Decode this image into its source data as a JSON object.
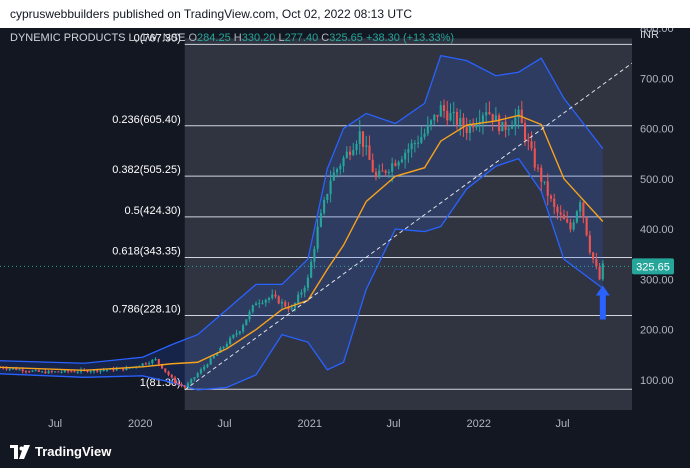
{
  "header": {
    "published_text": "cypruswebbuilders published on TradingView.com, Oct 02, 2022 08:13 UTC",
    "symbol": "DYNEMIC PRODUCTS L, 1W, NSE",
    "o_label": "O",
    "o_value": "284.25",
    "h_label": "H",
    "h_value": "330.20",
    "l_label": "L",
    "l_value": "277.40",
    "c_label": "C",
    "c_value": "325.65",
    "change": "+38.30 (+13.33%)"
  },
  "footer": {
    "brand": "TradingView"
  },
  "colors": {
    "background": "#131722",
    "selection": "#363a45",
    "up": "#26a69a",
    "down": "#ef5350",
    "band": "#2962ff",
    "ma": "#f7a21b",
    "price_tag": "#26a69a",
    "arrow": "#2962ff"
  },
  "chart_data": {
    "type": "candlestick",
    "currency": "INR",
    "ylim": [
      40,
      800
    ],
    "y_ticks": [
      100,
      200,
      300,
      400,
      500,
      600,
      700,
      800
    ],
    "y_tick_labels": [
      "100.00",
      "200.00",
      "300.00",
      "400.00",
      "500.00",
      "600.00",
      "700.00",
      "800.00"
    ],
    "x_labels": [
      {
        "label": "Jul",
        "date": "2019-07-01"
      },
      {
        "label": "2020",
        "date": "2020-01-01"
      },
      {
        "label": "Jul",
        "date": "2020-07-01"
      },
      {
        "label": "2021",
        "date": "2021-01-01"
      },
      {
        "label": "Jul",
        "date": "2021-07-01"
      },
      {
        "label": "2022",
        "date": "2022-01-01"
      },
      {
        "label": "Jul",
        "date": "2022-07-01"
      }
    ],
    "x_range": [
      "2019-03-04",
      "2022-11-28"
    ],
    "last_price": 325.65,
    "last_price_label": "325.65",
    "fib_levels": [
      {
        "label": "0(767.30)",
        "value": 767.3
      },
      {
        "label": "0.236(605.40)",
        "value": 605.4
      },
      {
        "label": "0.382(505.25)",
        "value": 505.25
      },
      {
        "label": "0.5(424.30)",
        "value": 424.3
      },
      {
        "label": "0.618(343.35)",
        "value": 343.35
      },
      {
        "label": "0.786(228.10)",
        "value": 228.1
      },
      {
        "label": "1(81.30)",
        "value": 81.3
      }
    ],
    "fib_range": [
      "2020-04-06",
      "2022-11-28"
    ],
    "trendline": [
      {
        "date": "2020-04-06",
        "value": 80
      },
      {
        "date": "2022-11-28",
        "value": 730
      }
    ],
    "arrow": {
      "date": "2022-09-26",
      "value": 220
    },
    "ohlc_anchor_points": [
      [
        "2019-03-04",
        125
      ],
      [
        "2019-06-03",
        115
      ],
      [
        "2019-09-02",
        118
      ],
      [
        "2019-12-02",
        122
      ],
      [
        "2020-02-03",
        140
      ],
      [
        "2020-03-16",
        95
      ],
      [
        "2020-04-06",
        85
      ],
      [
        "2020-06-01",
        140
      ],
      [
        "2020-08-03",
        200
      ],
      [
        "2020-09-07",
        255
      ],
      [
        "2020-10-12",
        265
      ],
      [
        "2020-11-23",
        240
      ],
      [
        "2020-12-28",
        300
      ],
      [
        "2021-01-18",
        400
      ],
      [
        "2021-02-15",
        500
      ],
      [
        "2021-03-15",
        540
      ],
      [
        "2021-04-19",
        590
      ],
      [
        "2021-05-24",
        500
      ],
      [
        "2021-06-28",
        530
      ],
      [
        "2021-08-02",
        560
      ],
      [
        "2021-09-06",
        590
      ],
      [
        "2021-10-11",
        640
      ],
      [
        "2021-11-08",
        620
      ],
      [
        "2021-12-06",
        600
      ],
      [
        "2022-01-17",
        640
      ],
      [
        "2022-02-21",
        600
      ],
      [
        "2022-03-28",
        625
      ],
      [
        "2022-05-02",
        530
      ],
      [
        "2022-06-13",
        440
      ],
      [
        "2022-07-18",
        400
      ],
      [
        "2022-08-08",
        460
      ],
      [
        "2022-08-29",
        360
      ],
      [
        "2022-09-19",
        300
      ],
      [
        "2022-09-26",
        325.65
      ]
    ],
    "bollinger_upper": [
      [
        "2019-03-04",
        138
      ],
      [
        "2019-09-02",
        133
      ],
      [
        "2020-01-06",
        145
      ],
      [
        "2020-03-09",
        170
      ],
      [
        "2020-05-04",
        190
      ],
      [
        "2020-07-06",
        240
      ],
      [
        "2020-09-07",
        290
      ],
      [
        "2020-11-02",
        290
      ],
      [
        "2020-12-28",
        340
      ],
      [
        "2021-02-08",
        520
      ],
      [
        "2021-03-15",
        600
      ],
      [
        "2021-05-03",
        630
      ],
      [
        "2021-07-05",
        610
      ],
      [
        "2021-09-06",
        650
      ],
      [
        "2021-10-11",
        745
      ],
      [
        "2021-12-06",
        735
      ],
      [
        "2022-02-07",
        705
      ],
      [
        "2022-03-28",
        712
      ],
      [
        "2022-05-16",
        740
      ],
      [
        "2022-07-04",
        660
      ],
      [
        "2022-09-26",
        560
      ]
    ],
    "bollinger_lower": [
      [
        "2019-03-04",
        112
      ],
      [
        "2019-09-02",
        105
      ],
      [
        "2020-01-06",
        108
      ],
      [
        "2020-03-09",
        95
      ],
      [
        "2020-05-04",
        80
      ],
      [
        "2020-07-06",
        85
      ],
      [
        "2020-09-07",
        110
      ],
      [
        "2020-11-02",
        190
      ],
      [
        "2020-12-28",
        175
      ],
      [
        "2021-02-08",
        120
      ],
      [
        "2021-03-15",
        135
      ],
      [
        "2021-05-03",
        280
      ],
      [
        "2021-07-05",
        400
      ],
      [
        "2021-09-06",
        395
      ],
      [
        "2021-10-11",
        405
      ],
      [
        "2021-12-06",
        480
      ],
      [
        "2022-02-07",
        525
      ],
      [
        "2022-03-28",
        540
      ],
      [
        "2022-05-16",
        475
      ],
      [
        "2022-07-04",
        340
      ],
      [
        "2022-09-26",
        282
      ]
    ],
    "moving_average": [
      [
        "2019-03-04",
        125
      ],
      [
        "2019-09-02",
        119
      ],
      [
        "2020-01-06",
        126
      ],
      [
        "2020-03-09",
        132
      ],
      [
        "2020-05-04",
        135
      ],
      [
        "2020-07-06",
        162
      ],
      [
        "2020-09-07",
        200
      ],
      [
        "2020-11-02",
        240
      ],
      [
        "2020-12-28",
        258
      ],
      [
        "2021-02-08",
        320
      ],
      [
        "2021-03-15",
        368
      ],
      [
        "2021-05-03",
        455
      ],
      [
        "2021-07-05",
        505
      ],
      [
        "2021-09-06",
        522
      ],
      [
        "2021-10-11",
        575
      ],
      [
        "2021-12-06",
        607
      ],
      [
        "2022-02-07",
        615
      ],
      [
        "2022-03-28",
        626
      ],
      [
        "2022-05-16",
        608
      ],
      [
        "2022-07-04",
        500
      ],
      [
        "2022-09-26",
        415
      ]
    ]
  }
}
